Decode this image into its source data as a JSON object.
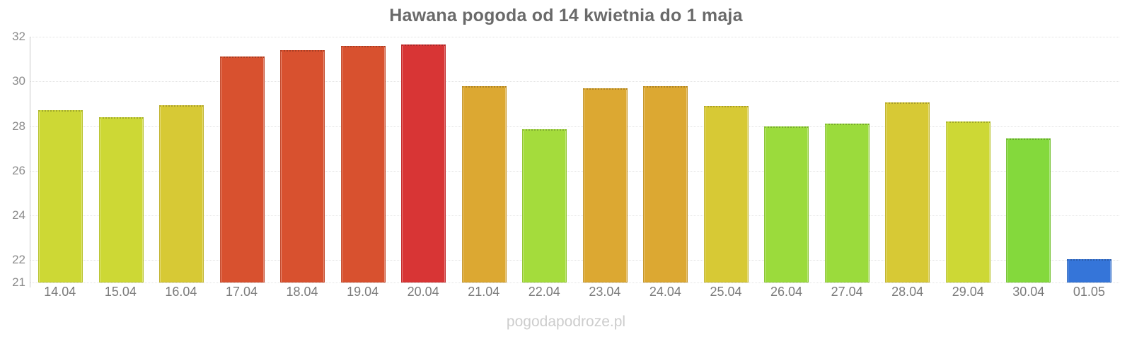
{
  "title": "Hawana pogoda od 14 kwietnia do 1 maja",
  "watermark": "pogodapodroze.pl",
  "chart_data": {
    "type": "bar",
    "title": "Hawana pogoda od 14 kwietnia do 1 maja",
    "xlabel": "",
    "ylabel": "",
    "categories": [
      "14.04",
      "15.04",
      "16.04",
      "17.04",
      "18.04",
      "19.04",
      "20.04",
      "21.04",
      "22.04",
      "23.04",
      "24.04",
      "25.04",
      "26.04",
      "27.04",
      "28.04",
      "29.04",
      "30.04",
      "01.05"
    ],
    "values": [
      28.7,
      28.4,
      28.95,
      31.1,
      31.4,
      31.6,
      31.65,
      29.8,
      27.85,
      29.7,
      29.8,
      28.9,
      28.0,
      28.1,
      29.05,
      28.2,
      27.45,
      22.05
    ],
    "colors": [
      "#cdd835",
      "#cdd835",
      "#d7c935",
      "#d8512f",
      "#d8512f",
      "#d8512f",
      "#d83535",
      "#dca832",
      "#a4dc3c",
      "#dca832",
      "#dca832",
      "#d7c935",
      "#9bdb3c",
      "#9bdb3c",
      "#d7c935",
      "#cdd835",
      "#84d93c",
      "#3575d9"
    ],
    "ylim": [
      21,
      32
    ],
    "yticks": [
      21,
      22,
      24,
      26,
      28,
      30,
      32
    ],
    "gridlines_at": [
      22,
      24,
      26,
      28,
      30,
      32
    ],
    "baseline_at": 21,
    "grid": "horizontal dotted",
    "legend": "none",
    "axis_color": "#c9c9c9",
    "grid_color": "#e2e2e2",
    "tick_label_color": "#8c8c8c",
    "x_label_color": "#7b7b7b",
    "title_color": "#6a6a6a",
    "watermark_color": "#cdcdcd"
  }
}
